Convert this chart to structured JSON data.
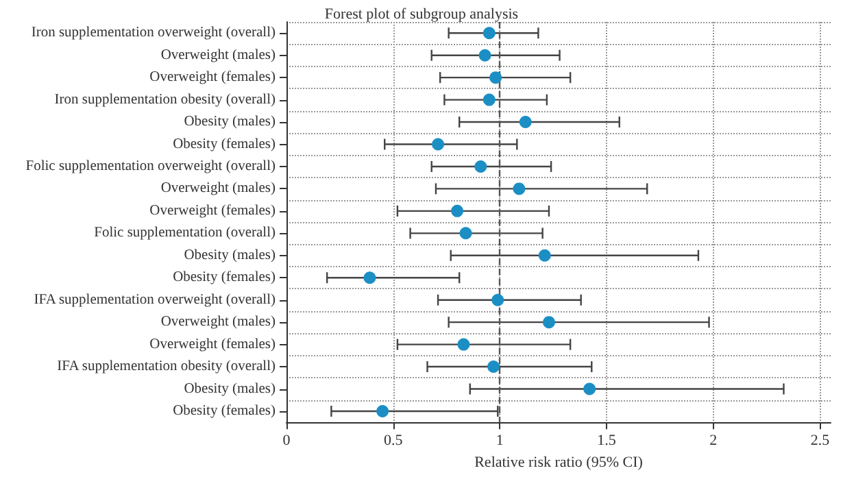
{
  "chart_data": {
    "type": "scatter",
    "orientation": "horizontal",
    "title": "Forest plot of subgroup analysis",
    "xlabel": "Relative risk ratio (95% CI)",
    "categories": [
      "Iron supplementation overweight (overall)",
      "Overweight (males)",
      "Overweight (females)",
      "Iron supplementation obesity (overall)",
      "Obesity (males)",
      "Obesity (females)",
      "Folic supplementation overweight (overall)",
      "Overweight (males)",
      "Overweight (females)",
      "Folic supplementation (overall)",
      "Obesity (males)",
      "Obesity (females)",
      "IFA supplementation overweight (overall)",
      "Overweight (males)",
      "Overweight (females)",
      "IFA supplementation obesity (overall)",
      "Obesity (males)",
      "Obesity (females)"
    ],
    "values": [
      0.95,
      0.93,
      0.98,
      0.95,
      1.12,
      0.71,
      0.91,
      1.09,
      0.8,
      0.84,
      1.21,
      0.39,
      0.99,
      1.23,
      0.83,
      0.97,
      1.42,
      0.45
    ],
    "errors": [
      [
        0.76,
        1.18
      ],
      [
        0.68,
        1.28
      ],
      [
        0.72,
        1.33
      ],
      [
        0.74,
        1.22
      ],
      [
        0.81,
        1.56
      ],
      [
        0.46,
        1.08
      ],
      [
        0.68,
        1.24
      ],
      [
        0.7,
        1.69
      ],
      [
        0.52,
        1.23
      ],
      [
        0.58,
        1.2
      ],
      [
        0.77,
        1.93
      ],
      [
        0.19,
        0.81
      ],
      [
        0.71,
        1.38
      ],
      [
        0.76,
        1.98
      ],
      [
        0.52,
        1.33
      ],
      [
        0.66,
        1.43
      ],
      [
        0.86,
        2.33
      ],
      [
        0.21,
        0.99
      ]
    ],
    "color": "#1b8fc4",
    "marker": "circle",
    "grid": true,
    "xlim": [
      0,
      2.55
    ],
    "xticks": [
      0,
      0.5,
      1,
      1.5,
      2,
      2.5
    ],
    "ref_lines": [
      {
        "axis": "x",
        "value": 1,
        "line_style": "dashed",
        "color": "#555555"
      }
    ]
  }
}
